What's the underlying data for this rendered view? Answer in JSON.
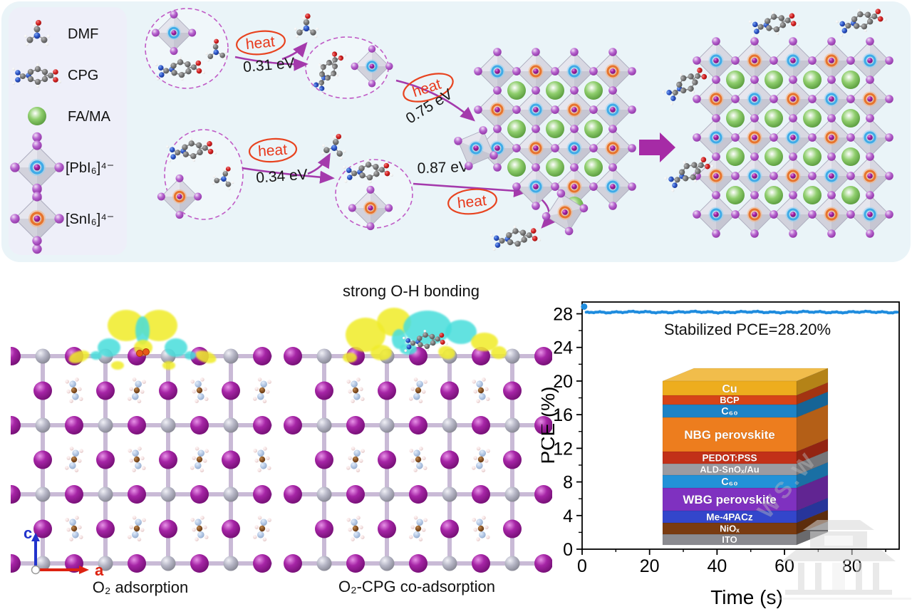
{
  "palette": {
    "panel_bg": "#EAF4F8",
    "legend_bg": "#EEEFF9",
    "arrow_purple": "#A43AAC",
    "heat_red": "#E8391C",
    "line_blue": "#1F8CDE",
    "iodine": "#9B1F9B",
    "lead_gray": "#A9A9B8",
    "fa_ma_green": "#7CC45E",
    "isosurface_yellow": "#F0EC2A",
    "isosurface_cyan": "#49DEDC"
  },
  "legend": {
    "items": [
      {
        "id": "dmf",
        "label": "DMF"
      },
      {
        "id": "cpg",
        "label": "CPG"
      },
      {
        "id": "fama",
        "label": "FA/MA"
      },
      {
        "id": "pbi6",
        "label": "[PbI₆]⁴⁻"
      },
      {
        "id": "sni6",
        "label": "[SnI₆]⁴⁻"
      }
    ]
  },
  "mechanism": {
    "steps": [
      {
        "heat": "heat",
        "energy": "0.31 eV"
      },
      {
        "heat": "heat",
        "energy": "0.75 eV"
      },
      {
        "heat": "heat",
        "energy": "0.34 eV"
      },
      {
        "heat": "heat",
        "energy": "0.87 eV"
      }
    ]
  },
  "panels": {
    "slab1": {
      "caption": "O₂ adsorption"
    },
    "slab2": {
      "caption": "O₂-CPG co-adsorption",
      "title": "strong O-H bonding"
    },
    "axes": {
      "c": "c",
      "a": "a"
    }
  },
  "chart_data": {
    "type": "line",
    "title": "",
    "annotation": "Stabilized PCE=28.20%",
    "xlabel": "Time (s)",
    "ylabel": "PCE (%)",
    "xlim": [
      0,
      94
    ],
    "ylim": [
      0,
      29.4
    ],
    "xticks": [
      0,
      20,
      40,
      60,
      80
    ],
    "yticks": [
      0,
      4,
      8,
      12,
      16,
      20,
      24,
      28
    ],
    "grid": false,
    "legend_position": "none",
    "series": [
      {
        "name": "PCE",
        "color": "#1F8CDE",
        "stabilized_value": 28.2,
        "initial_value": 28.85,
        "t_start": 0.6,
        "t_end": 93.5
      }
    ],
    "sampled_points": {
      "t": [
        0.5,
        1.5,
        5,
        10,
        20,
        30,
        40,
        50,
        60,
        70,
        80,
        90,
        93
      ],
      "pce": [
        28.85,
        28.1,
        28.2,
        28.2,
        28.2,
        28.2,
        28.2,
        28.2,
        28.2,
        28.2,
        28.2,
        28.2,
        28.2
      ]
    },
    "device_stack": {
      "layers": [
        {
          "label": "Cu",
          "color": "#EDAD1E",
          "h": 20
        },
        {
          "label": "BCP",
          "color": "#D64418",
          "h": 13
        },
        {
          "label": "C₆₀",
          "color": "#1D83C6",
          "h": 18
        },
        {
          "label": "NBG perovskite",
          "color": "#ED7D1E",
          "h": 48
        },
        {
          "label": "PEDOT:PSS",
          "color": "#C23018",
          "h": 17
        },
        {
          "label": "ALD-SnOₓ/Au",
          "color": "#9B9BA1",
          "h": 16
        },
        {
          "label": "C₆₀",
          "color": "#2292D8",
          "h": 18
        },
        {
          "label": "WBG perovskite",
          "color": "#7F31C0",
          "h": 32
        },
        {
          "label": "Me-4PACz",
          "color": "#3346CB",
          "h": 17
        },
        {
          "label": "NiOₓ",
          "color": "#7A3B10",
          "h": 16
        },
        {
          "label": "ITO",
          "color": "#8B8B90",
          "h": 15
        }
      ]
    },
    "watermark": "WS.W"
  }
}
